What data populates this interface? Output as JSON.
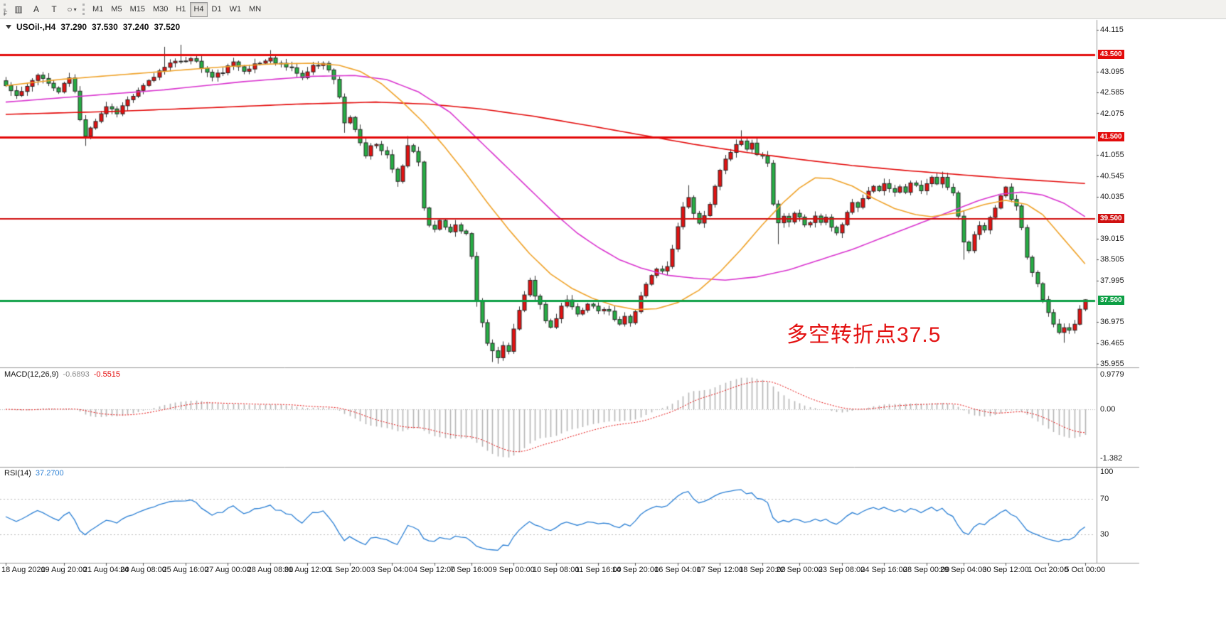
{
  "toolbar": {
    "f_label": "F",
    "tools": [
      {
        "name": "chart-window-tool",
        "glyph": "▥"
      },
      {
        "name": "text-tool",
        "glyph": "A"
      },
      {
        "name": "text-label-tool",
        "glyph": "T"
      },
      {
        "name": "shapes-tool",
        "glyph": "○",
        "caret": true
      }
    ],
    "timeframes": [
      "M1",
      "M5",
      "M15",
      "M30",
      "H1",
      "H4",
      "D1",
      "W1",
      "MN"
    ],
    "active_timeframe": "H4"
  },
  "symbol_info": {
    "title": "USOil-,H4",
    "open": "37.290",
    "high": "37.530",
    "low": "37.240",
    "close": "37.520"
  },
  "indicators": {
    "macd": {
      "label": "MACD(12,26,9)",
      "value_main": "-0.6893",
      "value_signal": "-0.5515",
      "scale": [
        {
          "t": "0.9779",
          "v": 0.9779
        },
        {
          "t": "0.00",
          "v": 0
        },
        {
          "t": "-1.382",
          "v": -1.382
        }
      ]
    },
    "rsi": {
      "label": "RSI(14)",
      "value": "37.2700",
      "scale": [
        {
          "t": "100",
          "v": 100
        },
        {
          "t": "70",
          "v": 70
        },
        {
          "t": "30",
          "v": 30
        }
      ]
    }
  },
  "annotation": {
    "text": "多空转折点37.5",
    "color": "#e31212"
  },
  "colors": {
    "up": "#e31212",
    "down": "#27ae45",
    "candle_border": "#272727",
    "wick": "#333333",
    "ma_slow": "#e30b0b",
    "ma_mid": "#d935cf",
    "ma_fast": "#efa32b",
    "macd_hist": "#b5b5b5",
    "macd_signal": "#e30b0b",
    "rsi_line": "#2a7fd4",
    "scale_text": "#1a1a1a",
    "separator": "#9a9a9a"
  },
  "chart_data": {
    "type": "candlestick",
    "symbol": "USOil",
    "timeframe": "H4",
    "bars_total": 205,
    "ohlc_current": {
      "open": 37.29,
      "high": 37.53,
      "low": 37.24,
      "close": 37.52
    },
    "price_scale": {
      "min": 35.955,
      "max": 44.115,
      "step": 0.51,
      "ticks": [
        "44.115",
        "43.095",
        "42.585",
        "42.075",
        "41.055",
        "40.545",
        "40.035",
        "39.015",
        "38.505",
        "37.995",
        "36.975",
        "36.465",
        "35.955"
      ]
    },
    "hlines": [
      {
        "price": 43.5,
        "label": "43.500",
        "color": "#e30b0b",
        "width": 3
      },
      {
        "price": 41.5,
        "label": "41.500",
        "color": "#e30b0b",
        "width": 3
      },
      {
        "price": 39.5,
        "label": "39.500",
        "color": "#d01010",
        "width": 2
      },
      {
        "price": 37.5,
        "label": "37.500",
        "color": "#0c9f44",
        "width": 3
      }
    ],
    "time_axis": [
      {
        "t": "18 Aug 2020",
        "bar": 0
      },
      {
        "t": "19 Aug 20:00",
        "bar": 11
      },
      {
        "t": "21 Aug 04:00",
        "bar": 19
      },
      {
        "t": "24 Aug 08:00",
        "bar": 26
      },
      {
        "t": "25 Aug 16:00",
        "bar": 34
      },
      {
        "t": "27 Aug 00:00",
        "bar": 42
      },
      {
        "t": "28 Aug 08:00",
        "bar": 50
      },
      {
        "t": "31 Aug 12:00",
        "bar": 57
      },
      {
        "t": "1 Sep 20:00",
        "bar": 65
      },
      {
        "t": "3 Sep 04:00",
        "bar": 73
      },
      {
        "t": "4 Sep 12:00",
        "bar": 81
      },
      {
        "t": "7 Sep 16:00",
        "bar": 88
      },
      {
        "t": "9 Sep 00:00",
        "bar": 96
      },
      {
        "t": "10 Sep 08:00",
        "bar": 104
      },
      {
        "t": "11 Sep 16:00",
        "bar": 112
      },
      {
        "t": "14 Sep 20:00",
        "bar": 119
      },
      {
        "t": "16 Sep 04:00",
        "bar": 127
      },
      {
        "t": "17 Sep 12:00",
        "bar": 135
      },
      {
        "t": "18 Sep 20:00",
        "bar": 143
      },
      {
        "t": "22 Sep 00:00",
        "bar": 150
      },
      {
        "t": "23 Sep 08:00",
        "bar": 158
      },
      {
        "t": "24 Sep 16:00",
        "bar": 166
      },
      {
        "t": "28 Sep 00:00",
        "bar": 174
      },
      {
        "t": "29 Sep 04:00",
        "bar": 181
      },
      {
        "t": "30 Sep 12:00",
        "bar": 189
      },
      {
        "t": "1 Oct 20:00",
        "bar": 197
      },
      {
        "t": "5 Oct 00:00",
        "bar": 204
      }
    ],
    "close_keypoints": [
      [
        0,
        42.75
      ],
      [
        2,
        42.5
      ],
      [
        4,
        42.7
      ],
      [
        6,
        43.05
      ],
      [
        8,
        42.8
      ],
      [
        10,
        42.6
      ],
      [
        12,
        42.95
      ],
      [
        13,
        42.6
      ],
      [
        14,
        41.9
      ],
      [
        15,
        41.55
      ],
      [
        16,
        41.75
      ],
      [
        17,
        41.9
      ],
      [
        19,
        42.25
      ],
      [
        21,
        42.1
      ],
      [
        23,
        42.4
      ],
      [
        25,
        42.6
      ],
      [
        27,
        42.85
      ],
      [
        29,
        43.1
      ],
      [
        31,
        43.35
      ],
      [
        33,
        43.3
      ],
      [
        35,
        43.45
      ],
      [
        37,
        43.2
      ],
      [
        39,
        42.95
      ],
      [
        41,
        43.1
      ],
      [
        43,
        43.3
      ],
      [
        45,
        43.15
      ],
      [
        47,
        43.25
      ],
      [
        49,
        43.35
      ],
      [
        50,
        43.45
      ],
      [
        51,
        43.3
      ],
      [
        53,
        43.25
      ],
      [
        55,
        43.1
      ],
      [
        56,
        42.95
      ],
      [
        58,
        43.2
      ],
      [
        60,
        43.3
      ],
      [
        61,
        43.15
      ],
      [
        62,
        42.95
      ],
      [
        63,
        42.45
      ],
      [
        64,
        41.85
      ],
      [
        65,
        41.95
      ],
      [
        66,
        41.7
      ],
      [
        67,
        41.35
      ],
      [
        68,
        41.05
      ],
      [
        69,
        41.25
      ],
      [
        70,
        41.35
      ],
      [
        71,
        41.2
      ],
      [
        72,
        41.05
      ],
      [
        73,
        40.7
      ],
      [
        74,
        40.45
      ],
      [
        75,
        40.8
      ],
      [
        76,
        41.3
      ],
      [
        77,
        41.1
      ],
      [
        78,
        40.85
      ],
      [
        79,
        39.75
      ],
      [
        80,
        39.35
      ],
      [
        81,
        39.2
      ],
      [
        82,
        39.45
      ],
      [
        83,
        39.3
      ],
      [
        84,
        39.2
      ],
      [
        85,
        39.35
      ],
      [
        86,
        39.25
      ],
      [
        87,
        39.1
      ],
      [
        88,
        38.6
      ],
      [
        89,
        37.5
      ],
      [
        90,
        37.0
      ],
      [
        91,
        36.5
      ],
      [
        92,
        36.25
      ],
      [
        93,
        36.1
      ],
      [
        94,
        36.4
      ],
      [
        95,
        36.3
      ],
      [
        96,
        36.8
      ],
      [
        97,
        37.25
      ],
      [
        98,
        37.6
      ],
      [
        99,
        37.95
      ],
      [
        100,
        37.6
      ],
      [
        101,
        37.4
      ],
      [
        102,
        37.0
      ],
      [
        103,
        36.85
      ],
      [
        104,
        37.1
      ],
      [
        105,
        37.35
      ],
      [
        106,
        37.5
      ],
      [
        107,
        37.3
      ],
      [
        108,
        37.15
      ],
      [
        109,
        37.3
      ],
      [
        110,
        37.45
      ],
      [
        111,
        37.35
      ],
      [
        112,
        37.2
      ],
      [
        113,
        37.3
      ],
      [
        114,
        37.2
      ],
      [
        115,
        37.05
      ],
      [
        116,
        36.9
      ],
      [
        117,
        37.1
      ],
      [
        118,
        37.0
      ],
      [
        119,
        37.25
      ],
      [
        120,
        37.6
      ],
      [
        121,
        37.9
      ],
      [
        122,
        38.1
      ],
      [
        123,
        38.3
      ],
      [
        124,
        38.2
      ],
      [
        125,
        38.35
      ],
      [
        126,
        38.8
      ],
      [
        127,
        39.3
      ],
      [
        128,
        39.8
      ],
      [
        129,
        40.05
      ],
      [
        130,
        39.6
      ],
      [
        131,
        39.35
      ],
      [
        132,
        39.55
      ],
      [
        133,
        39.9
      ],
      [
        134,
        40.3
      ],
      [
        135,
        40.65
      ],
      [
        136,
        40.95
      ],
      [
        137,
        41.1
      ],
      [
        138,
        41.3
      ],
      [
        139,
        41.45
      ],
      [
        140,
        41.2
      ],
      [
        141,
        41.35
      ],
      [
        142,
        41.1
      ],
      [
        143,
        41.0
      ],
      [
        144,
        40.9
      ],
      [
        145,
        39.9
      ],
      [
        146,
        39.35
      ],
      [
        147,
        39.55
      ],
      [
        148,
        39.4
      ],
      [
        149,
        39.6
      ],
      [
        150,
        39.5
      ],
      [
        151,
        39.3
      ],
      [
        152,
        39.45
      ],
      [
        153,
        39.6
      ],
      [
        154,
        39.4
      ],
      [
        155,
        39.55
      ],
      [
        156,
        39.3
      ],
      [
        157,
        39.15
      ],
      [
        158,
        39.4
      ],
      [
        159,
        39.7
      ],
      [
        160,
        39.9
      ],
      [
        161,
        39.8
      ],
      [
        162,
        40.0
      ],
      [
        163,
        40.15
      ],
      [
        164,
        40.3
      ],
      [
        165,
        40.2
      ],
      [
        166,
        40.35
      ],
      [
        167,
        40.25
      ],
      [
        168,
        40.1
      ],
      [
        169,
        40.3
      ],
      [
        170,
        40.15
      ],
      [
        171,
        40.4
      ],
      [
        172,
        40.3
      ],
      [
        173,
        40.2
      ],
      [
        174,
        40.35
      ],
      [
        175,
        40.5
      ],
      [
        176,
        40.4
      ],
      [
        177,
        40.55
      ],
      [
        178,
        40.3
      ],
      [
        179,
        40.1
      ],
      [
        180,
        39.6
      ],
      [
        181,
        38.9
      ],
      [
        182,
        38.75
      ],
      [
        183,
        39.1
      ],
      [
        184,
        39.3
      ],
      [
        185,
        39.2
      ],
      [
        186,
        39.5
      ],
      [
        187,
        39.8
      ],
      [
        188,
        40.1
      ],
      [
        189,
        40.25
      ],
      [
        190,
        40.0
      ],
      [
        191,
        39.85
      ],
      [
        192,
        39.3
      ],
      [
        193,
        38.6
      ],
      [
        194,
        38.15
      ],
      [
        195,
        37.9
      ],
      [
        196,
        37.5
      ],
      [
        197,
        37.2
      ],
      [
        198,
        36.9
      ],
      [
        199,
        36.7
      ],
      [
        200,
        36.85
      ],
      [
        201,
        36.75
      ],
      [
        202,
        36.95
      ],
      [
        203,
        37.29
      ],
      [
        204,
        37.52
      ]
    ],
    "force_closes": {
      "203": 37.29,
      "204": 37.52
    },
    "wick_overrides": {
      "15": {
        "low": 41.28
      },
      "30": {
        "high": 43.7
      },
      "33": {
        "high": 43.75
      },
      "50": {
        "high": 43.62
      },
      "64": {
        "low": 41.6
      },
      "74": {
        "low": 40.28
      },
      "76": {
        "high": 41.52
      },
      "89": {
        "low": 37.35
      },
      "92": {
        "low": 36.0
      },
      "93": {
        "low": 35.96
      },
      "99": {
        "high": 38.06
      },
      "129": {
        "high": 40.32
      },
      "139": {
        "high": 41.66
      },
      "146": {
        "low": 38.88
      },
      "177": {
        "high": 40.65
      },
      "181": {
        "low": 38.5
      },
      "189": {
        "high": 40.3
      },
      "200": {
        "low": 36.47
      },
      "204": {
        "high": 37.53,
        "low": 37.24
      }
    },
    "moving_averages": [
      {
        "name": "ma-slow-red",
        "color": "#e30b0b",
        "keypoints": [
          [
            0,
            42.05
          ],
          [
            20,
            42.12
          ],
          [
            40,
            42.22
          ],
          [
            55,
            42.3
          ],
          [
            70,
            42.35
          ],
          [
            80,
            42.3
          ],
          [
            90,
            42.18
          ],
          [
            100,
            42.0
          ],
          [
            110,
            41.78
          ],
          [
            120,
            41.55
          ],
          [
            130,
            41.32
          ],
          [
            140,
            41.12
          ],
          [
            150,
            40.95
          ],
          [
            160,
            40.8
          ],
          [
            170,
            40.68
          ],
          [
            180,
            40.58
          ],
          [
            190,
            40.48
          ],
          [
            204,
            40.36
          ]
        ]
      },
      {
        "name": "ma-medium-magenta",
        "color": "#d935cf",
        "keypoints": [
          [
            0,
            42.35
          ],
          [
            15,
            42.5
          ],
          [
            30,
            42.65
          ],
          [
            45,
            42.85
          ],
          [
            58,
            42.98
          ],
          [
            66,
            43.0
          ],
          [
            72,
            42.9
          ],
          [
            78,
            42.6
          ],
          [
            84,
            42.1
          ],
          [
            88,
            41.6
          ],
          [
            92,
            41.1
          ],
          [
            96,
            40.6
          ],
          [
            100,
            40.1
          ],
          [
            104,
            39.6
          ],
          [
            108,
            39.15
          ],
          [
            112,
            38.8
          ],
          [
            116,
            38.5
          ],
          [
            120,
            38.3
          ],
          [
            125,
            38.12
          ],
          [
            130,
            38.05
          ],
          [
            136,
            38.0
          ],
          [
            142,
            38.08
          ],
          [
            148,
            38.25
          ],
          [
            154,
            38.5
          ],
          [
            160,
            38.75
          ],
          [
            166,
            39.05
          ],
          [
            172,
            39.35
          ],
          [
            178,
            39.65
          ],
          [
            184,
            39.95
          ],
          [
            188,
            40.1
          ],
          [
            192,
            40.15
          ],
          [
            196,
            40.08
          ],
          [
            200,
            39.88
          ],
          [
            204,
            39.55
          ]
        ]
      },
      {
        "name": "ma-fast-orange",
        "color": "#efa32b",
        "keypoints": [
          [
            0,
            42.75
          ],
          [
            10,
            42.9
          ],
          [
            20,
            43.0
          ],
          [
            30,
            43.1
          ],
          [
            40,
            43.2
          ],
          [
            50,
            43.28
          ],
          [
            58,
            43.3
          ],
          [
            63,
            43.25
          ],
          [
            67,
            43.1
          ],
          [
            71,
            42.8
          ],
          [
            75,
            42.35
          ],
          [
            79,
            41.85
          ],
          [
            83,
            41.25
          ],
          [
            87,
            40.6
          ],
          [
            91,
            39.9
          ],
          [
            95,
            39.25
          ],
          [
            99,
            38.65
          ],
          [
            103,
            38.15
          ],
          [
            107,
            37.8
          ],
          [
            111,
            37.55
          ],
          [
            115,
            37.38
          ],
          [
            119,
            37.28
          ],
          [
            123,
            37.3
          ],
          [
            127,
            37.45
          ],
          [
            131,
            37.75
          ],
          [
            135,
            38.2
          ],
          [
            139,
            38.75
          ],
          [
            143,
            39.35
          ],
          [
            147,
            39.9
          ],
          [
            150,
            40.25
          ],
          [
            153,
            40.5
          ],
          [
            156,
            40.48
          ],
          [
            160,
            40.3
          ],
          [
            164,
            40.0
          ],
          [
            168,
            39.75
          ],
          [
            172,
            39.6
          ],
          [
            175,
            39.55
          ],
          [
            180,
            39.65
          ],
          [
            185,
            39.85
          ],
          [
            189,
            39.95
          ],
          [
            193,
            39.85
          ],
          [
            196,
            39.6
          ],
          [
            199,
            39.15
          ],
          [
            202,
            38.7
          ],
          [
            204,
            38.4
          ]
        ]
      }
    ],
    "macd": {
      "fast": 12,
      "slow": 26,
      "signal": 9,
      "current_main": -0.6893,
      "current_signal": -0.5515,
      "scale_max": 0.9779,
      "scale_min": -1.382
    },
    "rsi": {
      "period": 14,
      "current": 37.27,
      "levels": [
        70,
        30
      ],
      "range": [
        0,
        100
      ]
    },
    "noise_seed": 11,
    "noise_amp": 0.05
  }
}
